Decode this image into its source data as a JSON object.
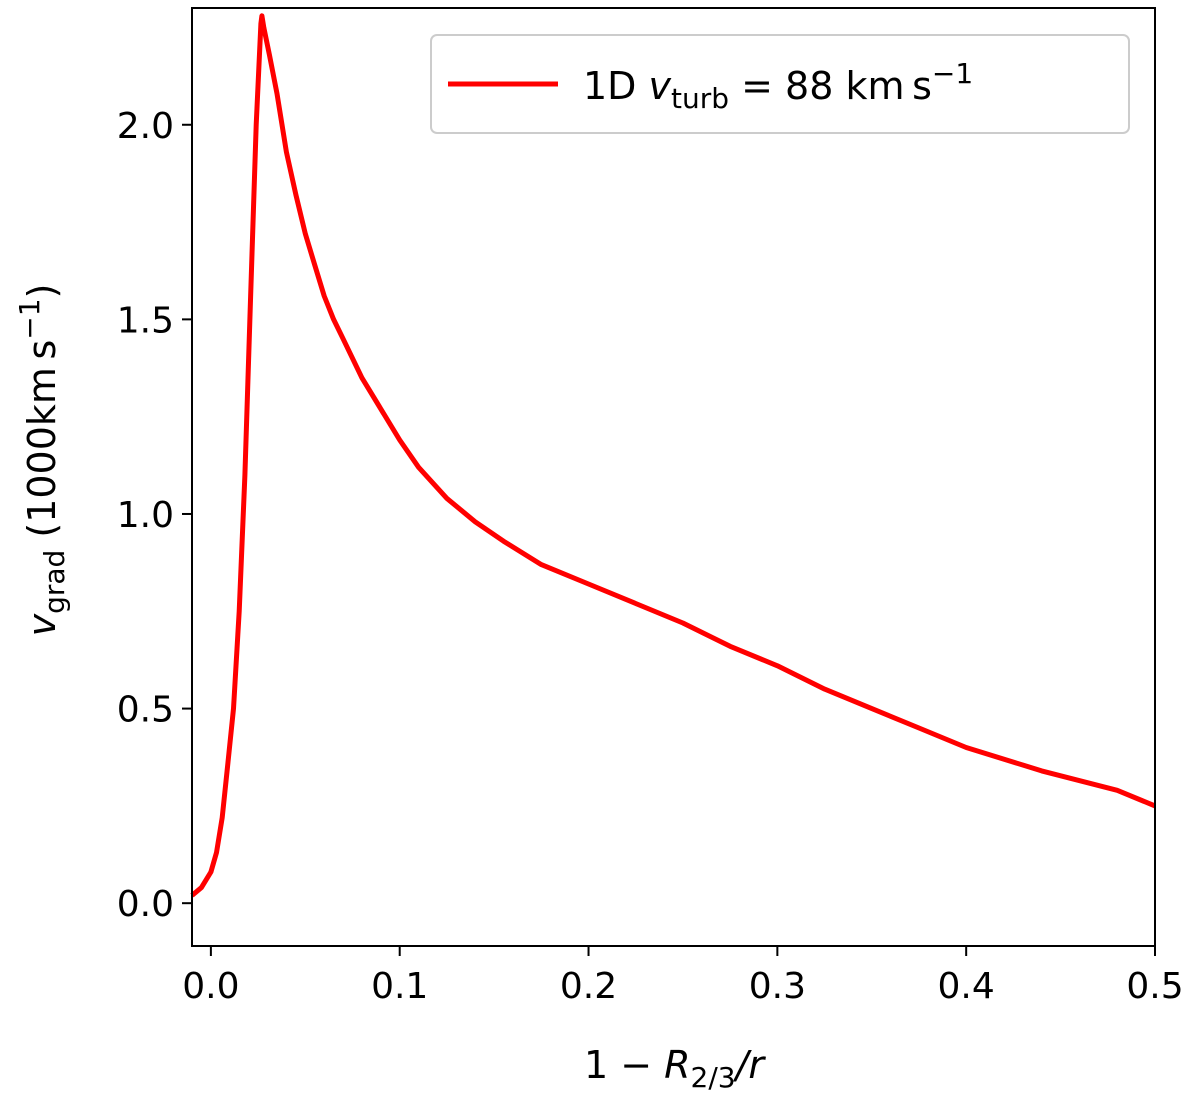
{
  "chart_data": {
    "type": "line",
    "xlim": [
      -0.01,
      0.5
    ],
    "ylim": [
      -0.11,
      2.3
    ],
    "x_ticks": [
      0.0,
      0.1,
      0.2,
      0.3,
      0.4,
      0.5
    ],
    "x_tick_labels": [
      "0.0",
      "0.1",
      "0.2",
      "0.3",
      "0.4",
      "0.5"
    ],
    "y_ticks": [
      0.0,
      0.5,
      1.0,
      1.5,
      2.0
    ],
    "y_tick_labels": [
      "0.0",
      "0.5",
      "1.0",
      "1.5",
      "2.0"
    ],
    "xlabel": {
      "prefix": "1 − ",
      "var": "R",
      "sub": "2/3",
      "suffix": "/",
      "var2": "r"
    },
    "ylabel": {
      "var": "v",
      "sub": "grad",
      "paren_open": " (1000km s",
      "sup": "−1",
      "paren_close": ")"
    },
    "legend": {
      "position": "upper right",
      "prefix": "1D ",
      "var": "v",
      "sub": "turb",
      "value": " = 88 km s",
      "sup": "−1"
    },
    "grid": false,
    "series": [
      {
        "color": "#ff0000",
        "x": [
          -0.01,
          -0.005,
          0.0,
          0.003,
          0.006,
          0.009,
          0.012,
          0.015,
          0.018,
          0.021,
          0.024,
          0.0265,
          0.027,
          0.028,
          0.031,
          0.035,
          0.04,
          0.045,
          0.05,
          0.055,
          0.06,
          0.065,
          0.07,
          0.08,
          0.09,
          0.1,
          0.11,
          0.125,
          0.14,
          0.155,
          0.175,
          0.2,
          0.225,
          0.25,
          0.275,
          0.3,
          0.325,
          0.35,
          0.375,
          0.4,
          0.44,
          0.48,
          0.5
        ],
        "y": [
          0.02,
          0.04,
          0.08,
          0.13,
          0.22,
          0.36,
          0.5,
          0.75,
          1.1,
          1.55,
          2.0,
          2.26,
          2.28,
          2.25,
          2.18,
          2.08,
          1.93,
          1.82,
          1.72,
          1.64,
          1.56,
          1.5,
          1.45,
          1.35,
          1.27,
          1.19,
          1.12,
          1.04,
          0.98,
          0.93,
          0.87,
          0.82,
          0.77,
          0.72,
          0.66,
          0.61,
          0.55,
          0.5,
          0.45,
          0.4,
          0.34,
          0.29,
          0.25
        ]
      }
    ]
  }
}
